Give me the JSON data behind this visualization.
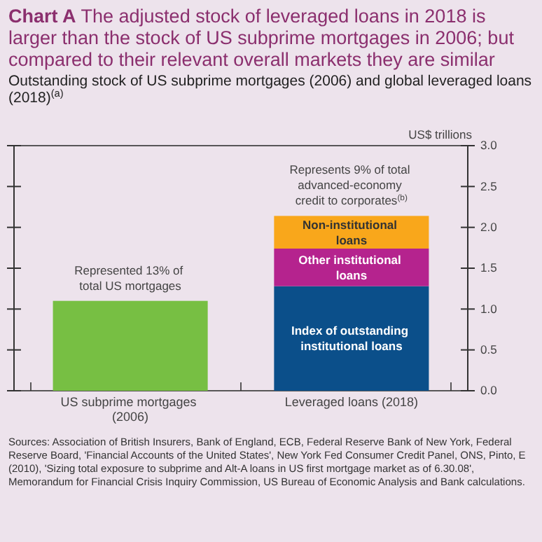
{
  "chart_data": {
    "type": "bar",
    "stacked": true,
    "title": "Chart A The adjusted stock of leveraged loans in 2018 is larger than the stock of US subprime mortgages in 2006; but compared to their relevant overall markets they are similar",
    "subtitle": "Outstanding stock of US subprime mortgages (2006) and global leveraged loans (2018)$^{(a)}$",
    "ylabel": "US$ trillions",
    "categories": [
      "US subprime mortgages (2006)",
      "Leveraged loans (2018)"
    ],
    "series": [
      {
        "color": "#77bf43",
        "values": [
          1.1,
          null
        ]
      },
      {
        "name": "Index of outstanding institutional loans",
        "color": "#0b4f8a",
        "values": [
          null,
          1.28
        ]
      },
      {
        "name": "Other institutional loans",
        "color": "#b5238e",
        "values": [
          null,
          0.46
        ]
      },
      {
        "name": "Non-institutional loans",
        "color": "#f9a71b",
        "values": [
          null,
          0.4
        ]
      }
    ],
    "ylim": [
      0,
      3
    ],
    "yticks": [
      {
        "value": 0,
        "label": "0.0"
      },
      {
        "value": 0.5,
        "label": "0.5"
      },
      {
        "value": 1,
        "label": "1.0"
      },
      {
        "value": 1.5,
        "label": "1.5"
      },
      {
        "value": 2,
        "label": "2.0"
      },
      {
        "value": 2.5,
        "label": "2.5"
      },
      {
        "value": 3,
        "label": "3.0"
      }
    ],
    "grid": false,
    "legend": false,
    "annotations": [
      {
        "text": "Represented 13% of total US mortgages",
        "x": "US subprime mortgages (2006)",
        "y": 1.1
      },
      {
        "text": "Represents 9% of total advanced-economy credit to corporates$^{(b)}$",
        "x": "Leveraged loans (2018)",
        "y": 2.14
      },
      "Sources: Association of British Insurers, Bank of England, ECB, Federal Reserve Bank of New York, Federal Reserve Board, 'Financial Accounts of the United States', New York Fed Consumer Credit Panel, ONS, Pinto, E (2010), 'Sizing total exposure to subprime and Alt-A loans in US first mortgage market as of 6.30.08', Memorandum for Financial Crisis Inquiry Commission, US Bureau of Economic Analysis and Bank calculations."
    ]
  }
}
